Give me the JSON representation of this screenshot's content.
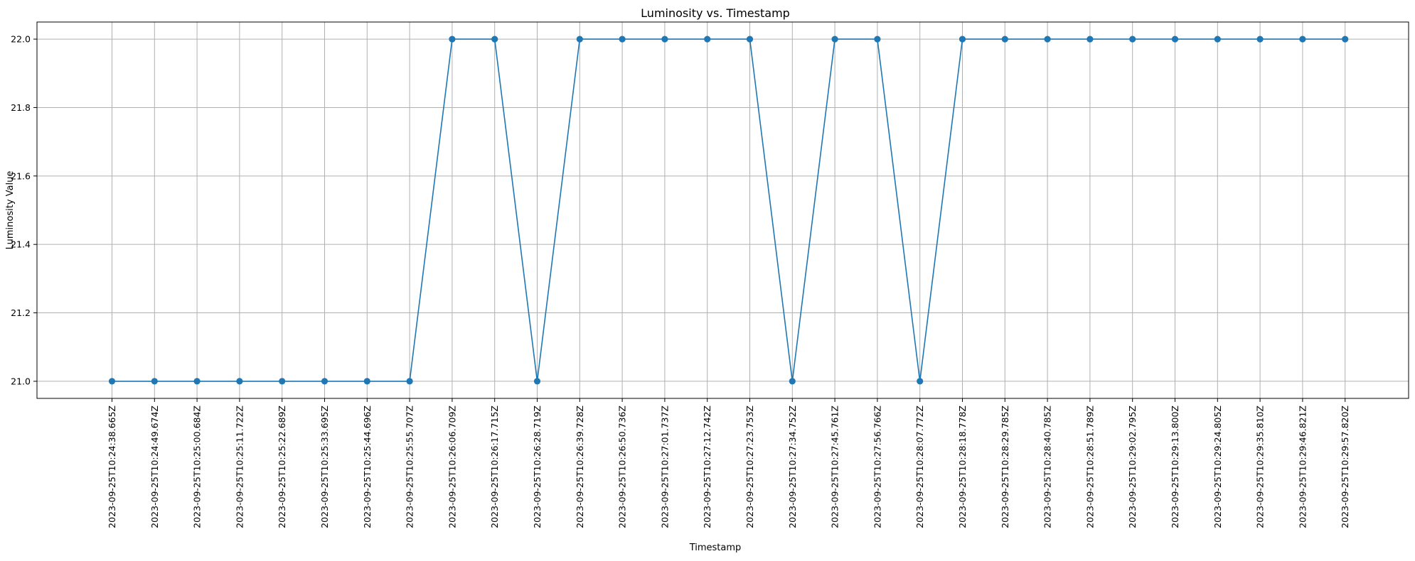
{
  "chart_data": {
    "type": "line",
    "title": "Luminosity vs. Timestamp",
    "xlabel": "Timestamp",
    "ylabel": "Luminosity Value",
    "grid": true,
    "ylim": [
      20.95,
      22.05
    ],
    "yticks": [
      21.0,
      21.2,
      21.4,
      21.6,
      21.8,
      22.0
    ],
    "ytick_labels": [
      "21.0",
      "21.2",
      "21.4",
      "21.6",
      "21.8",
      "22.0"
    ],
    "marker": "circle",
    "line_color": "#1f77b4",
    "categories": [
      "2023-09-25T10:24:38.665Z",
      "2023-09-25T10:24:49.674Z",
      "2023-09-25T10:25:00.684Z",
      "2023-09-25T10:25:11.722Z",
      "2023-09-25T10:25:22.689Z",
      "2023-09-25T10:25:33.695Z",
      "2023-09-25T10:25:44.696Z",
      "2023-09-25T10:25:55.707Z",
      "2023-09-25T10:26:06.709Z",
      "2023-09-25T10:26:17.715Z",
      "2023-09-25T10:26:28.719Z",
      "2023-09-25T10:26:39.728Z",
      "2023-09-25T10:26:50.736Z",
      "2023-09-25T10:27:01.737Z",
      "2023-09-25T10:27:12.742Z",
      "2023-09-25T10:27:23.753Z",
      "2023-09-25T10:27:34.752Z",
      "2023-09-25T10:27:45.761Z",
      "2023-09-25T10:27:56.766Z",
      "2023-09-25T10:28:07.772Z",
      "2023-09-25T10:28:18.778Z",
      "2023-09-25T10:28:29.785Z",
      "2023-09-25T10:28:40.785Z",
      "2023-09-25T10:28:51.789Z",
      "2023-09-25T10:29:02.795Z",
      "2023-09-25T10:29:13.800Z",
      "2023-09-25T10:29:24.805Z",
      "2023-09-25T10:29:35.810Z",
      "2023-09-25T10:29:46.821Z",
      "2023-09-25T10:29:57.820Z"
    ],
    "values": [
      21,
      21,
      21,
      21,
      21,
      21,
      21,
      21,
      22,
      22,
      21,
      22,
      22,
      22,
      22,
      22,
      21,
      22,
      22,
      21,
      22,
      22,
      22,
      22,
      22,
      22,
      22,
      22,
      22,
      22
    ]
  }
}
